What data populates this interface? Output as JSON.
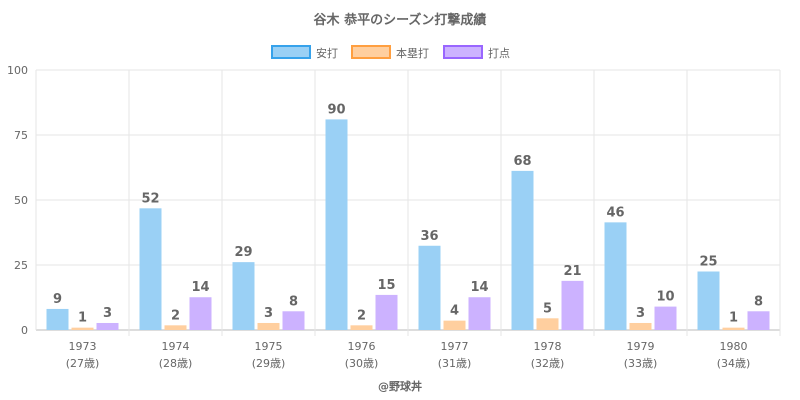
{
  "chart_data": {
    "type": "bar",
    "title": "谷木 恭平のシーズン打撃成績",
    "categories": [
      "1973",
      "1974",
      "1975",
      "1976",
      "1977",
      "1978",
      "1979",
      "1980"
    ],
    "sublabels": [
      "(27歳)",
      "(28歳)",
      "(29歳)",
      "(30歳)",
      "(31歳)",
      "(32歳)",
      "(33歳)",
      "(34歳)"
    ],
    "series": [
      {
        "name": "安打",
        "values": [
          9,
          52,
          29,
          90,
          36,
          68,
          46,
          25
        ],
        "color": "#9ad0f5",
        "border": "#36a2eb"
      },
      {
        "name": "本塁打",
        "values": [
          1,
          2,
          3,
          2,
          4,
          5,
          3,
          1
        ],
        "color": "#ffcf9f",
        "border": "#ff9f40"
      },
      {
        "name": "打点",
        "values": [
          3,
          14,
          8,
          15,
          14,
          21,
          10,
          8
        ],
        "color": "#ccb2ff",
        "border": "#9966ff"
      }
    ],
    "ylim": [
      0,
      100
    ],
    "yticks": [
      0,
      25,
      50,
      75,
      100
    ],
    "legend": "top",
    "grid": true,
    "footer": "@野球丼"
  }
}
